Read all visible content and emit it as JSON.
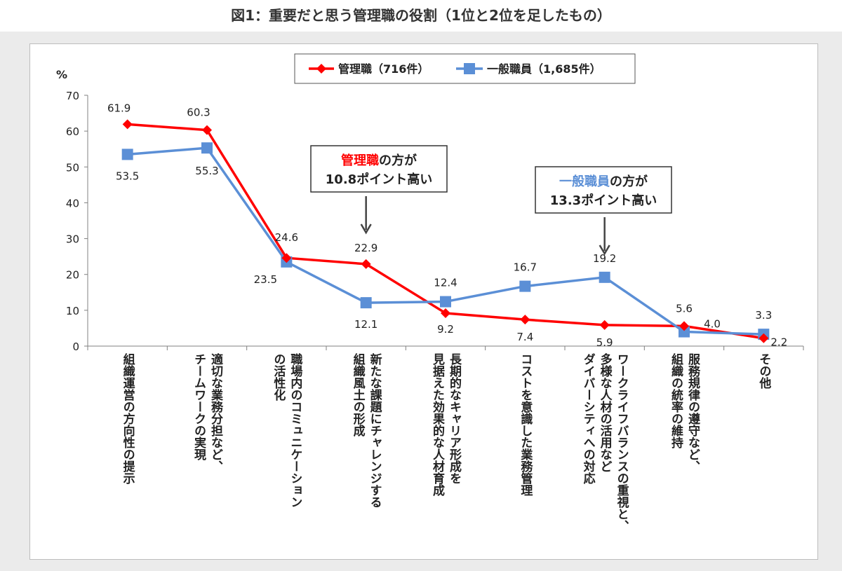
{
  "figure_title": "図1：重要だと思う管理職の役割（1位と2位を足したもの）",
  "colors": {
    "manager": "#ff0000",
    "staff": "#5b8fd6",
    "text": "#222222",
    "axis": "#808080"
  },
  "chart_data": {
    "type": "line",
    "ylabel": "%",
    "ylim": [
      0,
      70
    ],
    "yticks": [
      0,
      10,
      20,
      30,
      40,
      50,
      60,
      70
    ],
    "grid": false,
    "legend_position": "top-center",
    "categories": [
      "組織運営の方向性の提示",
      "適切な業務分担など、チームワークの実現",
      "職場内のコミュニケーションの活性化",
      "新たな課題にチャレンジする組織風土の形成",
      "長期的なキャリア形成を見据えた効果的な人材育成",
      "コストを意識した業務管理",
      "ワークライフバランスの重視と、多様な人材の活用などダイバーシティへの対応",
      "服務規律の遵守など、組織の統率の維持",
      "その他"
    ],
    "category_lines": [
      [
        "組織運営の方向性の提示"
      ],
      [
        "適切な業務分担など、",
        "チームワークの実現"
      ],
      [
        "職場内のコミュニケーション",
        "の活性化"
      ],
      [
        "新たな課題にチャレンジする",
        "組織風土の形成"
      ],
      [
        "長期的なキャリア形成を",
        "見据えた効果的な人材育成"
      ],
      [
        "コストを意識した業務管理"
      ],
      [
        "ワークライフバランスの重視と、",
        "多様な人材の活用など",
        "ダイバーシティへの対応"
      ],
      [
        "服務規律の遵守など、",
        "組織の統率の維持"
      ],
      [
        "その他"
      ]
    ],
    "series": [
      {
        "name": "管理職（716件）",
        "marker": "diamond",
        "values": [
          61.9,
          60.3,
          24.6,
          22.9,
          9.2,
          7.4,
          5.9,
          5.6,
          2.2
        ],
        "labels": [
          "61.9",
          "60.3",
          "24.6",
          "22.9",
          "9.2",
          "7.4",
          "5.9",
          "5.6",
          "2.2"
        ]
      },
      {
        "name": "一般職員（1,685件）",
        "marker": "square",
        "values": [
          53.5,
          55.3,
          23.5,
          12.1,
          12.4,
          16.7,
          19.2,
          4.0,
          3.3
        ],
        "labels": [
          "53.5",
          "55.3",
          "23.5",
          "12.1",
          "12.4",
          "16.7",
          "19.2",
          "4.0",
          "3.3"
        ]
      }
    ],
    "annotations": [
      {
        "category_index": 3,
        "highlight": "管理職",
        "highlight_series": 0,
        "suffix": "の方が",
        "line2": "10.8ポイント高い"
      },
      {
        "category_index": 6,
        "highlight": "一般職員",
        "highlight_series": 1,
        "suffix": "の方が",
        "line2": "13.3ポイント高い"
      }
    ]
  }
}
